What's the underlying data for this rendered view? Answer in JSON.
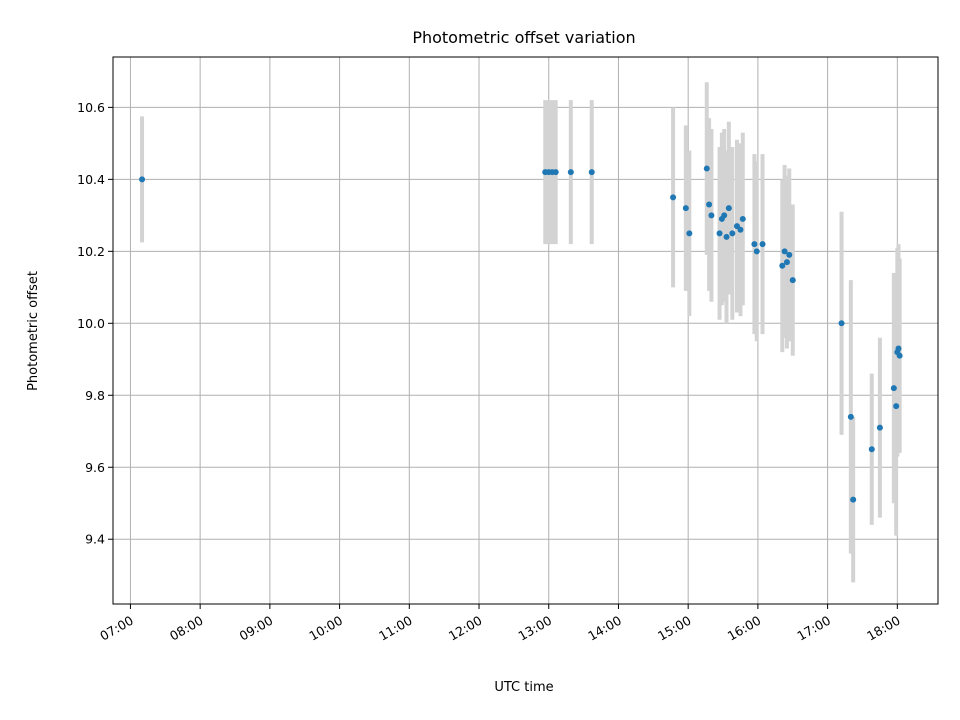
{
  "chart_data": {
    "type": "scatter",
    "title": "Photometric offset variation",
    "xlabel": "UTC time",
    "ylabel": "Photometric offset",
    "x_ticks": [
      "07:00",
      "08:00",
      "09:00",
      "10:00",
      "11:00",
      "12:00",
      "13:00",
      "14:00",
      "15:00",
      "16:00",
      "17:00",
      "18:00"
    ],
    "y_ticks": [
      "9.4",
      "9.6",
      "9.8",
      "10.0",
      "10.2",
      "10.4",
      "10.6"
    ],
    "xlim": [
      "06:45",
      "18:35"
    ],
    "ylim": [
      9.22,
      10.74
    ],
    "grid": true,
    "colors": {
      "points": "#1f77b4",
      "error_bars": "#d3d3d3",
      "grid": "#b0b0b0"
    },
    "series": [
      {
        "points": [
          {
            "x": "07:10",
            "y": 10.4,
            "err": 0.175
          },
          {
            "x": "12:57",
            "y": 10.42,
            "err": 0.2
          },
          {
            "x": "13:00",
            "y": 10.42,
            "err": 0.2
          },
          {
            "x": "13:03",
            "y": 10.42,
            "err": 0.2
          },
          {
            "x": "13:06",
            "y": 10.42,
            "err": 0.2
          },
          {
            "x": "13:19",
            "y": 10.42,
            "err": 0.2
          },
          {
            "x": "13:37",
            "y": 10.42,
            "err": 0.2
          },
          {
            "x": "14:47",
            "y": 10.35,
            "err": 0.25
          },
          {
            "x": "14:58",
            "y": 10.32,
            "err": 0.23
          },
          {
            "x": "15:01",
            "y": 10.25,
            "err": 0.23
          },
          {
            "x": "15:16",
            "y": 10.43,
            "err": 0.24
          },
          {
            "x": "15:18",
            "y": 10.33,
            "err": 0.24
          },
          {
            "x": "15:20",
            "y": 10.3,
            "err": 0.24
          },
          {
            "x": "15:27",
            "y": 10.25,
            "err": 0.24
          },
          {
            "x": "15:29",
            "y": 10.29,
            "err": 0.24
          },
          {
            "x": "15:31",
            "y": 10.3,
            "err": 0.24
          },
          {
            "x": "15:33",
            "y": 10.24,
            "err": 0.24
          },
          {
            "x": "15:35",
            "y": 10.32,
            "err": 0.24
          },
          {
            "x": "15:38",
            "y": 10.25,
            "err": 0.24
          },
          {
            "x": "15:42",
            "y": 10.27,
            "err": 0.24
          },
          {
            "x": "15:45",
            "y": 10.26,
            "err": 0.24
          },
          {
            "x": "15:47",
            "y": 10.29,
            "err": 0.24
          },
          {
            "x": "15:57",
            "y": 10.22,
            "err": 0.25
          },
          {
            "x": "15:59",
            "y": 10.2,
            "err": 0.25
          },
          {
            "x": "16:04",
            "y": 10.22,
            "err": 0.25
          },
          {
            "x": "16:21",
            "y": 10.16,
            "err": 0.24
          },
          {
            "x": "16:23",
            "y": 10.2,
            "err": 0.24
          },
          {
            "x": "16:25",
            "y": 10.17,
            "err": 0.24
          },
          {
            "x": "16:27",
            "y": 10.19,
            "err": 0.24
          },
          {
            "x": "16:30",
            "y": 10.12,
            "err": 0.21
          },
          {
            "x": "17:12",
            "y": 10.0,
            "err": 0.31
          },
          {
            "x": "17:20",
            "y": 9.74,
            "err": 0.38
          },
          {
            "x": "17:22",
            "y": 9.51,
            "err": 0.23
          },
          {
            "x": "17:38",
            "y": 9.65,
            "err": 0.21
          },
          {
            "x": "17:45",
            "y": 9.71,
            "err": 0.25
          },
          {
            "x": "17:57",
            "y": 9.82,
            "err": 0.32
          },
          {
            "x": "17:59",
            "y": 9.77,
            "err": 0.36
          },
          {
            "x": "18:00",
            "y": 9.92,
            "err": 0.29
          },
          {
            "x": "18:01",
            "y": 9.93,
            "err": 0.29
          },
          {
            "x": "18:02",
            "y": 9.91,
            "err": 0.27
          }
        ]
      }
    ]
  }
}
